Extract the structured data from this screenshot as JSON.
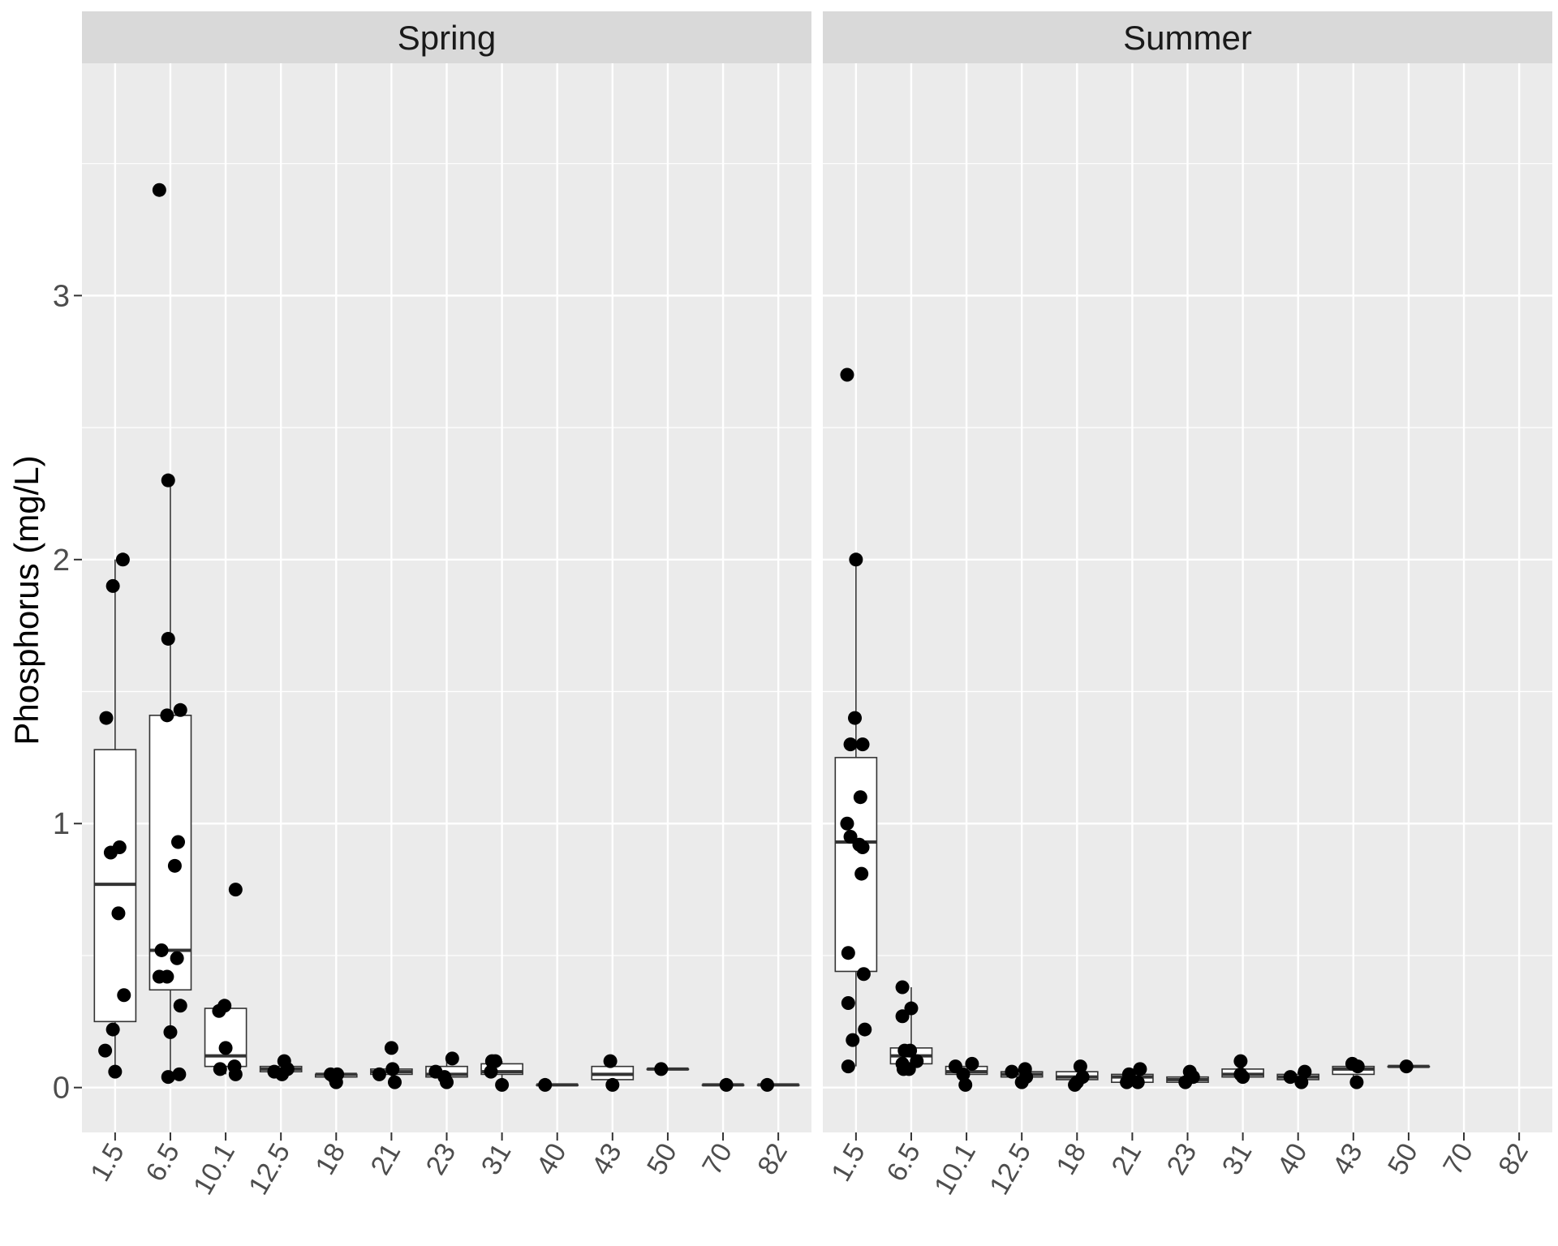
{
  "chart_data": {
    "type": "boxplot-jitter",
    "ylabel": "Phosphorus (mg/L)",
    "xlabel": "",
    "title": "",
    "ylim": [
      -0.17,
      3.88
    ],
    "yticks": [
      0,
      1,
      2,
      3
    ],
    "categories": [
      "1.5",
      "6.5",
      "10.1",
      "12.5",
      "18",
      "21",
      "23",
      "31",
      "40",
      "43",
      "50",
      "70",
      "82"
    ],
    "grid": true,
    "colors": {
      "panel_bg": "#ebebeb",
      "strip_bg": "#d9d9d9",
      "grid": "#ffffff",
      "point": "#000000",
      "box_fill": "#ffffff",
      "box_line": "#333333"
    },
    "panels": [
      {
        "name": "Spring",
        "boxes": [
          {
            "category": "1.5",
            "min": 0.05,
            "q1": 0.25,
            "median": 0.77,
            "q3": 1.28,
            "max": 2.0
          },
          {
            "category": "6.5",
            "min": 0.04,
            "q1": 0.37,
            "median": 0.52,
            "q3": 1.41,
            "max": 2.3
          },
          {
            "category": "10.1",
            "min": 0.05,
            "q1": 0.08,
            "median": 0.12,
            "q3": 0.3,
            "max": 0.3
          },
          {
            "category": "12.5",
            "min": 0.05,
            "q1": 0.06,
            "median": 0.07,
            "q3": 0.08,
            "max": 0.1
          },
          {
            "category": "18",
            "min": 0.02,
            "q1": 0.04,
            "median": 0.05,
            "q3": 0.05,
            "max": 0.06
          },
          {
            "category": "21",
            "min": 0.02,
            "q1": 0.05,
            "median": 0.06,
            "q3": 0.07,
            "max": 0.07
          },
          {
            "category": "23",
            "min": 0.02,
            "q1": 0.04,
            "median": 0.05,
            "q3": 0.08,
            "max": 0.1
          },
          {
            "category": "31",
            "min": 0.01,
            "q1": 0.05,
            "median": 0.06,
            "q3": 0.09,
            "max": 0.1
          },
          {
            "category": "40",
            "min": 0.01,
            "q1": 0.01,
            "median": 0.01,
            "q3": 0.01,
            "max": 0.01
          },
          {
            "category": "43",
            "min": 0.01,
            "q1": 0.03,
            "median": 0.05,
            "q3": 0.08,
            "max": 0.1
          },
          {
            "category": "50",
            "min": 0.07,
            "q1": 0.07,
            "median": 0.07,
            "q3": 0.07,
            "max": 0.07
          },
          {
            "category": "70",
            "min": 0.01,
            "q1": 0.01,
            "median": 0.01,
            "q3": 0.01,
            "max": 0.01
          },
          {
            "category": "82",
            "min": 0.01,
            "q1": 0.01,
            "median": 0.01,
            "q3": 0.01,
            "max": 0.01
          }
        ],
        "points": [
          {
            "category": "1.5",
            "dx": -0.16,
            "y": 1.4
          },
          {
            "category": "1.5",
            "dx": -0.04,
            "y": 1.9
          },
          {
            "category": "1.5",
            "dx": 0.14,
            "y": 2.0
          },
          {
            "category": "1.5",
            "dx": -0.08,
            "y": 0.89
          },
          {
            "category": "1.5",
            "dx": 0.08,
            "y": 0.91
          },
          {
            "category": "1.5",
            "dx": 0.06,
            "y": 0.66
          },
          {
            "category": "1.5",
            "dx": 0.16,
            "y": 0.35
          },
          {
            "category": "1.5",
            "dx": -0.04,
            "y": 0.22
          },
          {
            "category": "1.5",
            "dx": -0.18,
            "y": 0.14
          },
          {
            "category": "1.5",
            "dx": 0.0,
            "y": 0.06
          },
          {
            "category": "6.5",
            "dx": -0.2,
            "y": 3.4
          },
          {
            "category": "6.5",
            "dx": -0.04,
            "y": 2.3
          },
          {
            "category": "6.5",
            "dx": -0.04,
            "y": 1.7
          },
          {
            "category": "6.5",
            "dx": 0.18,
            "y": 1.43
          },
          {
            "category": "6.5",
            "dx": -0.06,
            "y": 1.41
          },
          {
            "category": "6.5",
            "dx": 0.14,
            "y": 0.93
          },
          {
            "category": "6.5",
            "dx": 0.08,
            "y": 0.84
          },
          {
            "category": "6.5",
            "dx": -0.16,
            "y": 0.52
          },
          {
            "category": "6.5",
            "dx": 0.12,
            "y": 0.49
          },
          {
            "category": "6.5",
            "dx": -0.2,
            "y": 0.42
          },
          {
            "category": "6.5",
            "dx": -0.06,
            "y": 0.42
          },
          {
            "category": "6.5",
            "dx": 0.18,
            "y": 0.31
          },
          {
            "category": "6.5",
            "dx": 0.0,
            "y": 0.21
          },
          {
            "category": "6.5",
            "dx": 0.16,
            "y": 0.05
          },
          {
            "category": "6.5",
            "dx": -0.04,
            "y": 0.04
          },
          {
            "category": "10.1",
            "dx": 0.18,
            "y": 0.75
          },
          {
            "category": "10.1",
            "dx": -0.02,
            "y": 0.31
          },
          {
            "category": "10.1",
            "dx": -0.12,
            "y": 0.29
          },
          {
            "category": "10.1",
            "dx": 0.0,
            "y": 0.15
          },
          {
            "category": "10.1",
            "dx": -0.1,
            "y": 0.07
          },
          {
            "category": "10.1",
            "dx": 0.16,
            "y": 0.08
          },
          {
            "category": "10.1",
            "dx": 0.18,
            "y": 0.05
          },
          {
            "category": "12.5",
            "dx": 0.06,
            "y": 0.1
          },
          {
            "category": "12.5",
            "dx": -0.12,
            "y": 0.06
          },
          {
            "category": "12.5",
            "dx": 0.12,
            "y": 0.07
          },
          {
            "category": "12.5",
            "dx": 0.02,
            "y": 0.05
          },
          {
            "category": "18",
            "dx": -0.1,
            "y": 0.05
          },
          {
            "category": "18",
            "dx": 0.02,
            "y": 0.05
          },
          {
            "category": "18",
            "dx": -0.04,
            "y": 0.04
          },
          {
            "category": "18",
            "dx": 0.0,
            "y": 0.02
          },
          {
            "category": "21",
            "dx": 0.0,
            "y": 0.15
          },
          {
            "category": "21",
            "dx": -0.22,
            "y": 0.05
          },
          {
            "category": "21",
            "dx": 0.02,
            "y": 0.07
          },
          {
            "category": "21",
            "dx": 0.06,
            "y": 0.02
          },
          {
            "category": "23",
            "dx": 0.1,
            "y": 0.11
          },
          {
            "category": "23",
            "dx": -0.2,
            "y": 0.06
          },
          {
            "category": "23",
            "dx": -0.04,
            "y": 0.04
          },
          {
            "category": "23",
            "dx": 0.0,
            "y": 0.02
          },
          {
            "category": "31",
            "dx": -0.18,
            "y": 0.1
          },
          {
            "category": "31",
            "dx": -0.12,
            "y": 0.1
          },
          {
            "category": "31",
            "dx": -0.2,
            "y": 0.06
          },
          {
            "category": "31",
            "dx": 0.0,
            "y": 0.01
          },
          {
            "category": "40",
            "dx": -0.22,
            "y": 0.01
          },
          {
            "category": "43",
            "dx": -0.04,
            "y": 0.1
          },
          {
            "category": "43",
            "dx": 0.0,
            "y": 0.01
          },
          {
            "category": "50",
            "dx": -0.12,
            "y": 0.07
          },
          {
            "category": "70",
            "dx": 0.06,
            "y": 0.01
          },
          {
            "category": "82",
            "dx": -0.2,
            "y": 0.01
          }
        ]
      },
      {
        "name": "Summer",
        "boxes": [
          {
            "category": "1.5",
            "min": 0.08,
            "q1": 0.44,
            "median": 0.93,
            "q3": 1.25,
            "max": 2.0
          },
          {
            "category": "6.5",
            "min": 0.06,
            "q1": 0.09,
            "median": 0.12,
            "q3": 0.15,
            "max": 0.38
          },
          {
            "category": "10.1",
            "min": 0.01,
            "q1": 0.05,
            "median": 0.06,
            "q3": 0.08,
            "max": 0.09
          },
          {
            "category": "12.5",
            "min": 0.02,
            "q1": 0.04,
            "median": 0.05,
            "q3": 0.06,
            "max": 0.07
          },
          {
            "category": "18",
            "min": 0.01,
            "q1": 0.03,
            "median": 0.04,
            "q3": 0.06,
            "max": 0.07
          },
          {
            "category": "21",
            "min": 0.02,
            "q1": 0.02,
            "median": 0.04,
            "q3": 0.05,
            "max": 0.07
          },
          {
            "category": "23",
            "min": 0.01,
            "q1": 0.02,
            "median": 0.03,
            "q3": 0.04,
            "max": 0.06
          },
          {
            "category": "31",
            "min": 0.04,
            "q1": 0.04,
            "median": 0.05,
            "q3": 0.07,
            "max": 0.09
          },
          {
            "category": "40",
            "min": 0.02,
            "q1": 0.03,
            "median": 0.04,
            "q3": 0.05,
            "max": 0.06
          },
          {
            "category": "43",
            "min": 0.02,
            "q1": 0.05,
            "median": 0.07,
            "q3": 0.08,
            "max": 0.09
          },
          {
            "category": "50",
            "min": 0.08,
            "q1": 0.08,
            "median": 0.08,
            "q3": 0.08,
            "max": 0.08
          }
        ],
        "points": [
          {
            "category": "1.5",
            "dx": -0.16,
            "y": 2.7
          },
          {
            "category": "1.5",
            "dx": 0.0,
            "y": 2.0
          },
          {
            "category": "1.5",
            "dx": -0.02,
            "y": 1.4
          },
          {
            "category": "1.5",
            "dx": -0.1,
            "y": 1.3
          },
          {
            "category": "1.5",
            "dx": 0.12,
            "y": 1.3
          },
          {
            "category": "1.5",
            "dx": 0.08,
            "y": 1.1
          },
          {
            "category": "1.5",
            "dx": -0.16,
            "y": 1.0
          },
          {
            "category": "1.5",
            "dx": -0.1,
            "y": 0.95
          },
          {
            "category": "1.5",
            "dx": 0.06,
            "y": 0.92
          },
          {
            "category": "1.5",
            "dx": 0.12,
            "y": 0.91
          },
          {
            "category": "1.5",
            "dx": 0.1,
            "y": 0.81
          },
          {
            "category": "1.5",
            "dx": -0.14,
            "y": 0.51
          },
          {
            "category": "1.5",
            "dx": 0.14,
            "y": 0.43
          },
          {
            "category": "1.5",
            "dx": -0.14,
            "y": 0.32
          },
          {
            "category": "1.5",
            "dx": 0.16,
            "y": 0.22
          },
          {
            "category": "1.5",
            "dx": -0.06,
            "y": 0.18
          },
          {
            "category": "1.5",
            "dx": -0.14,
            "y": 0.08
          },
          {
            "category": "6.5",
            "dx": -0.16,
            "y": 0.38
          },
          {
            "category": "6.5",
            "dx": 0.0,
            "y": 0.3
          },
          {
            "category": "6.5",
            "dx": -0.16,
            "y": 0.27
          },
          {
            "category": "6.5",
            "dx": -0.12,
            "y": 0.14
          },
          {
            "category": "6.5",
            "dx": -0.02,
            "y": 0.14
          },
          {
            "category": "6.5",
            "dx": 0.1,
            "y": 0.1
          },
          {
            "category": "6.5",
            "dx": -0.16,
            "y": 0.09
          },
          {
            "category": "6.5",
            "dx": -0.14,
            "y": 0.07
          },
          {
            "category": "6.5",
            "dx": -0.04,
            "y": 0.07
          },
          {
            "category": "10.1",
            "dx": -0.2,
            "y": 0.08
          },
          {
            "category": "10.1",
            "dx": 0.1,
            "y": 0.09
          },
          {
            "category": "10.1",
            "dx": -0.06,
            "y": 0.05
          },
          {
            "category": "10.1",
            "dx": -0.02,
            "y": 0.01
          },
          {
            "category": "12.5",
            "dx": -0.18,
            "y": 0.06
          },
          {
            "category": "12.5",
            "dx": 0.06,
            "y": 0.07
          },
          {
            "category": "12.5",
            "dx": 0.08,
            "y": 0.04
          },
          {
            "category": "12.5",
            "dx": 0.0,
            "y": 0.02
          },
          {
            "category": "18",
            "dx": 0.06,
            "y": 0.08
          },
          {
            "category": "18",
            "dx": 0.1,
            "y": 0.04
          },
          {
            "category": "18",
            "dx": 0.0,
            "y": 0.02
          },
          {
            "category": "18",
            "dx": -0.04,
            "y": 0.01
          },
          {
            "category": "21",
            "dx": 0.14,
            "y": 0.07
          },
          {
            "category": "21",
            "dx": -0.06,
            "y": 0.05
          },
          {
            "category": "21",
            "dx": -0.1,
            "y": 0.02
          },
          {
            "category": "21",
            "dx": 0.1,
            "y": 0.02
          },
          {
            "category": "23",
            "dx": 0.04,
            "y": 0.06
          },
          {
            "category": "23",
            "dx": 0.1,
            "y": 0.04
          },
          {
            "category": "23",
            "dx": -0.04,
            "y": 0.02
          },
          {
            "category": "31",
            "dx": -0.04,
            "y": 0.1
          },
          {
            "category": "31",
            "dx": -0.04,
            "y": 0.05
          },
          {
            "category": "31",
            "dx": 0.0,
            "y": 0.04
          },
          {
            "category": "40",
            "dx": -0.14,
            "y": 0.04
          },
          {
            "category": "40",
            "dx": 0.12,
            "y": 0.06
          },
          {
            "category": "40",
            "dx": 0.06,
            "y": 0.02
          },
          {
            "category": "43",
            "dx": -0.02,
            "y": 0.09
          },
          {
            "category": "43",
            "dx": 0.08,
            "y": 0.08
          },
          {
            "category": "43",
            "dx": 0.06,
            "y": 0.02
          },
          {
            "category": "50",
            "dx": -0.04,
            "y": 0.08
          }
        ]
      }
    ]
  }
}
